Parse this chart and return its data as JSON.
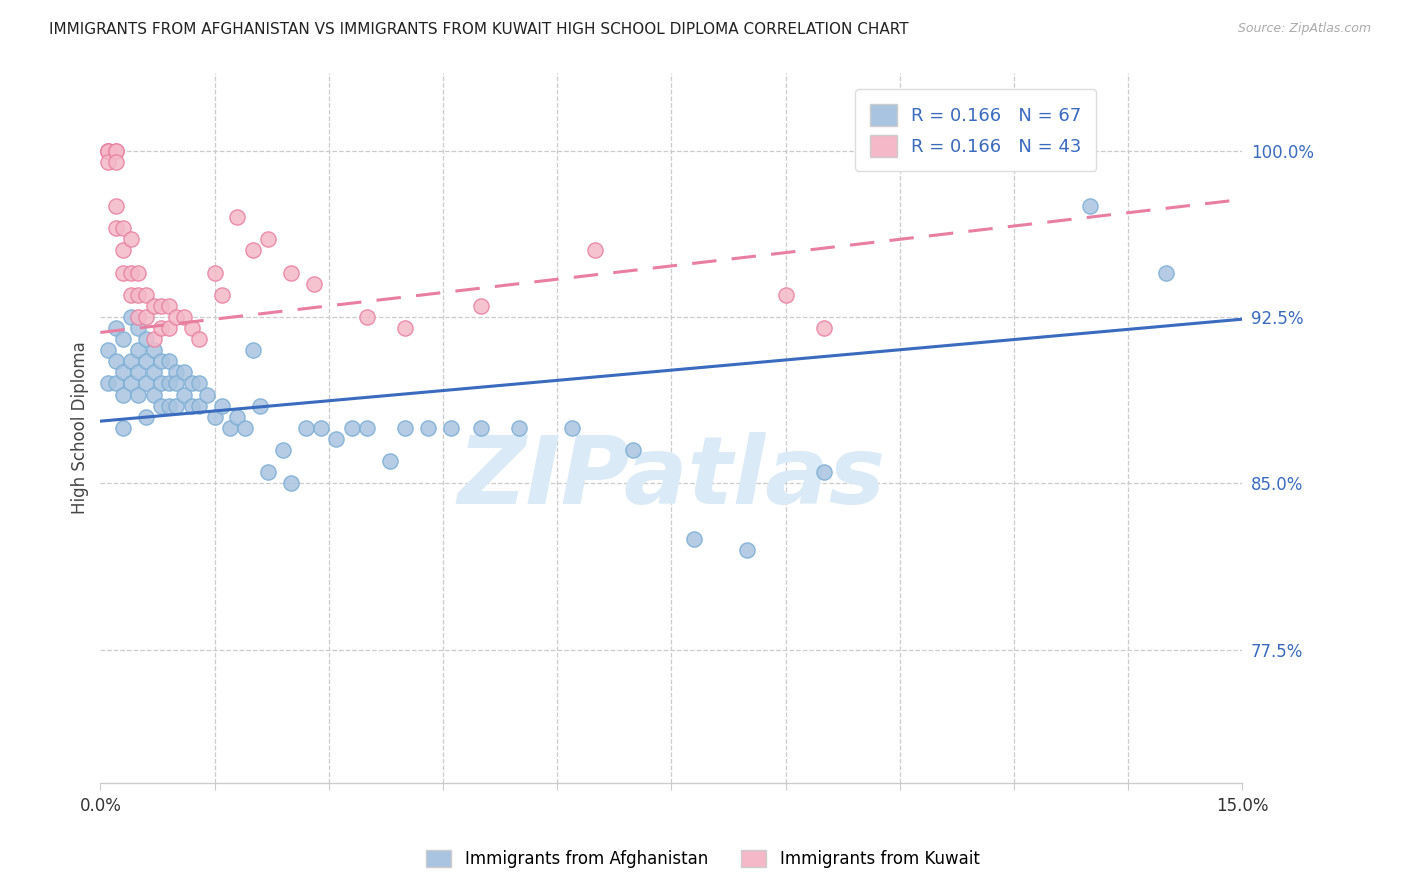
{
  "title": "IMMIGRANTS FROM AFGHANISTAN VS IMMIGRANTS FROM KUWAIT HIGH SCHOOL DIPLOMA CORRELATION CHART",
  "source": "Source: ZipAtlas.com",
  "ylabel": "High School Diploma",
  "ytick_labels": [
    "100.0%",
    "92.5%",
    "85.0%",
    "77.5%"
  ],
  "ytick_values": [
    1.0,
    0.925,
    0.85,
    0.775
  ],
  "xlim": [
    0.0,
    0.15
  ],
  "ylim": [
    0.715,
    1.035
  ],
  "afghanistan_color": "#a8c4e0",
  "afghanistan_edge_color": "#7aadd4",
  "kuwait_color": "#f4b8c8",
  "kuwait_edge_color": "#e87fa0",
  "afghanistan_line_color": "#3a6bbf",
  "kuwait_line_color": "#e87fa0",
  "background_color": "#ffffff",
  "watermark_text": "ZIPatlas",
  "watermark_color": "#daeaf7",
  "afghanistan_scatter_x": [
    0.001,
    0.001,
    0.002,
    0.002,
    0.002,
    0.003,
    0.003,
    0.003,
    0.003,
    0.004,
    0.004,
    0.004,
    0.005,
    0.005,
    0.005,
    0.005,
    0.006,
    0.006,
    0.006,
    0.006,
    0.007,
    0.007,
    0.007,
    0.008,
    0.008,
    0.008,
    0.009,
    0.009,
    0.009,
    0.01,
    0.01,
    0.01,
    0.011,
    0.011,
    0.012,
    0.012,
    0.013,
    0.013,
    0.014,
    0.015,
    0.016,
    0.017,
    0.018,
    0.019,
    0.02,
    0.021,
    0.022,
    0.024,
    0.025,
    0.027,
    0.029,
    0.031,
    0.033,
    0.035,
    0.038,
    0.04,
    0.043,
    0.046,
    0.05,
    0.055,
    0.062,
    0.07,
    0.078,
    0.085,
    0.095,
    0.13,
    0.14
  ],
  "afghanistan_scatter_y": [
    0.91,
    0.895,
    0.92,
    0.905,
    0.895,
    0.915,
    0.9,
    0.89,
    0.875,
    0.925,
    0.905,
    0.895,
    0.92,
    0.91,
    0.9,
    0.89,
    0.915,
    0.905,
    0.895,
    0.88,
    0.91,
    0.9,
    0.89,
    0.905,
    0.895,
    0.885,
    0.905,
    0.895,
    0.885,
    0.9,
    0.895,
    0.885,
    0.9,
    0.89,
    0.895,
    0.885,
    0.895,
    0.885,
    0.89,
    0.88,
    0.885,
    0.875,
    0.88,
    0.875,
    0.91,
    0.885,
    0.855,
    0.865,
    0.85,
    0.875,
    0.875,
    0.87,
    0.875,
    0.875,
    0.86,
    0.875,
    0.875,
    0.875,
    0.875,
    0.875,
    0.875,
    0.865,
    0.825,
    0.82,
    0.855,
    0.975,
    0.945
  ],
  "kuwait_scatter_x": [
    0.001,
    0.001,
    0.001,
    0.001,
    0.002,
    0.002,
    0.002,
    0.002,
    0.002,
    0.003,
    0.003,
    0.003,
    0.004,
    0.004,
    0.004,
    0.005,
    0.005,
    0.005,
    0.006,
    0.006,
    0.007,
    0.007,
    0.008,
    0.008,
    0.009,
    0.009,
    0.01,
    0.011,
    0.012,
    0.013,
    0.015,
    0.016,
    0.018,
    0.02,
    0.022,
    0.025,
    0.028,
    0.035,
    0.04,
    0.05,
    0.065,
    0.09,
    0.095
  ],
  "kuwait_scatter_y": [
    1.0,
    1.0,
    1.0,
    0.995,
    1.0,
    1.0,
    0.995,
    0.975,
    0.965,
    0.965,
    0.955,
    0.945,
    0.96,
    0.945,
    0.935,
    0.945,
    0.935,
    0.925,
    0.935,
    0.925,
    0.93,
    0.915,
    0.93,
    0.92,
    0.93,
    0.92,
    0.925,
    0.925,
    0.92,
    0.915,
    0.945,
    0.935,
    0.97,
    0.955,
    0.96,
    0.945,
    0.94,
    0.925,
    0.92,
    0.93,
    0.955,
    0.935,
    0.92
  ],
  "afghanistan_trendline_x": [
    0.0,
    0.15
  ],
  "afghanistan_trendline_y": [
    0.878,
    0.924
  ],
  "kuwait_trendline_x": [
    0.0,
    0.15
  ],
  "kuwait_trendline_y": [
    0.918,
    0.978
  ],
  "xtick_positions": [
    0.0,
    0.015,
    0.03,
    0.045,
    0.06,
    0.075,
    0.09,
    0.105,
    0.12,
    0.135,
    0.15
  ],
  "grid_x_positions": [
    0.015,
    0.03,
    0.045,
    0.06,
    0.075,
    0.09,
    0.105,
    0.12,
    0.135
  ]
}
